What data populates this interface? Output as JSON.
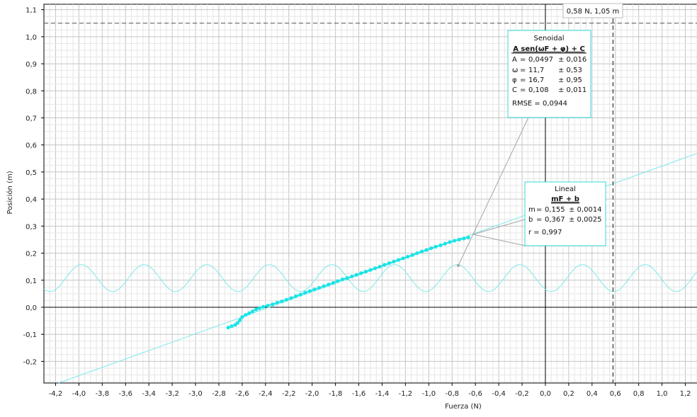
{
  "chart_data": {
    "type": "scatter",
    "xlabel": "Fuerza (N)",
    "ylabel": "Posición (m)",
    "xlim": [
      -4.3,
      1.3
    ],
    "ylim": [
      -0.28,
      1.12
    ],
    "x_ticks": [
      "-4,2",
      "-4,0",
      "-3,8",
      "-3,6",
      "-3,4",
      "-3,2",
      "-3,0",
      "-2,8",
      "-2,6",
      "-2,4",
      "-2,2",
      "-2,0",
      "-1,8",
      "-1,6",
      "-1,4",
      "-1,2",
      "-1,0",
      "-0,8",
      "-0,6",
      "-0,4",
      "-0,2",
      "0,0",
      "0,2",
      "0,4",
      "0,6",
      "0,8",
      "1,0",
      "1,2"
    ],
    "x_tick_values": [
      -4.2,
      -4.0,
      -3.8,
      -3.6,
      -3.4,
      -3.2,
      -3.0,
      -2.8,
      -2.6,
      -2.4,
      -2.2,
      -2.0,
      -1.8,
      -1.6,
      -1.4,
      -1.2,
      -1.0,
      -0.8,
      -0.6,
      -0.4,
      -0.2,
      0.0,
      0.2,
      0.4,
      0.6,
      0.8,
      1.0,
      1.2
    ],
    "y_ticks": [
      "1,1",
      "1,0",
      "0,9",
      "0,8",
      "0,7",
      "0,6",
      "0,5",
      "0,4",
      "0,3",
      "0,2",
      "0,1",
      "0,0",
      "-0,1",
      "-0,2"
    ],
    "y_tick_values": [
      1.1,
      1.0,
      0.9,
      0.8,
      0.7,
      0.6,
      0.5,
      0.4,
      0.3,
      0.2,
      0.1,
      0.0,
      -0.1,
      -0.2
    ],
    "grid": true,
    "series": [
      {
        "x": [
          -2.72,
          -2.69,
          -2.66,
          -2.64,
          -2.62,
          -2.6,
          -2.57,
          -2.54,
          -2.51,
          -2.48,
          -2.45,
          -2.42,
          -2.38,
          -2.34,
          -2.3,
          -2.26,
          -2.22,
          -2.18,
          -2.14,
          -2.1,
          -2.06,
          -2.02,
          -1.98,
          -1.94,
          -1.9,
          -1.86,
          -1.82,
          -1.78,
          -1.74,
          -1.7,
          -1.66,
          -1.62,
          -1.58,
          -1.54,
          -1.5,
          -1.46,
          -1.42,
          -1.38,
          -1.34,
          -1.3,
          -1.26,
          -1.22,
          -1.18,
          -1.14,
          -1.1,
          -1.06,
          -1.02,
          -0.98,
          -0.94,
          -0.9,
          -0.86,
          -0.82,
          -0.78,
          -0.74,
          -0.7,
          -0.66
        ],
        "y": [
          -0.075,
          -0.07,
          -0.065,
          -0.058,
          -0.048,
          -0.036,
          -0.028,
          -0.022,
          -0.015,
          -0.008,
          -0.003,
          0.002,
          0.006,
          0.011,
          0.017,
          0.022,
          0.028,
          0.034,
          0.041,
          0.047,
          0.054,
          0.06,
          0.066,
          0.072,
          0.078,
          0.084,
          0.09,
          0.097,
          0.103,
          0.108,
          0.114,
          0.12,
          0.126,
          0.132,
          0.138,
          0.144,
          0.15,
          0.157,
          0.163,
          0.169,
          0.175,
          0.181,
          0.187,
          0.193,
          0.2,
          0.206,
          0.212,
          0.218,
          0.224,
          0.229,
          0.235,
          0.241,
          0.246,
          0.25,
          0.254,
          0.258
        ]
      }
    ],
    "fits": [
      {
        "model": "Senoidal",
        "formula": "A sen(ωF + φ) + C",
        "params": [
          {
            "label": "A",
            "value": "0,0497",
            "error": "± 0,016"
          },
          {
            "label": "ω",
            "value": "11,7",
            "error": "± 0,53"
          },
          {
            "label": "φ",
            "value": "16,7",
            "error": "± 0,95"
          },
          {
            "label": "C",
            "value": "0,108",
            "error": "± 0,011"
          }
        ],
        "stat": "RMSE = 0,0944",
        "A": 0.0497,
        "omega": 11.7,
        "phi": 16.7,
        "C": 0.108
      },
      {
        "model": "Lineal",
        "formula": "mF + b",
        "params": [
          {
            "label": "m",
            "value": "0,155",
            "error": "± 0,0014"
          },
          {
            "label": "b",
            "value": "0,367",
            "error": "± 0,0025"
          }
        ],
        "stat": "r = 0,997",
        "m": 0.155,
        "b": 0.367
      }
    ],
    "crosshair": {
      "x": 0.58,
      "y": 1.05,
      "label": "0,58 N, 1,05 m"
    },
    "colors": {
      "data": "#19e4e6",
      "fit": "#7fe8ea",
      "axis": "#000000",
      "box_border": "#35d9dc",
      "leader": "#a6a6a6"
    }
  }
}
